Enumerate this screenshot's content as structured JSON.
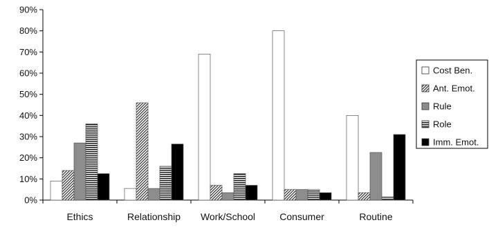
{
  "chart_data": {
    "type": "bar",
    "title": "",
    "xlabel": "",
    "ylabel": "",
    "categories": [
      "Ethics",
      "Relationship",
      "Work/School",
      "Consumer",
      "Routine"
    ],
    "y_tick_labels": [
      "0%",
      "10%",
      "20%",
      "30%",
      "40%",
      "50%",
      "60%",
      "70%",
      "80%",
      "90%"
    ],
    "ylim": [
      0,
      90
    ],
    "grid": false,
    "legend_position": "right",
    "series": [
      {
        "name": "Cost Ben.",
        "fill": "white",
        "values": [
          9,
          5.5,
          69,
          80,
          40
        ]
      },
      {
        "name": "Ant. Emot.",
        "fill": "diagonal-hatch",
        "values": [
          14,
          46,
          7,
          5,
          3.5
        ]
      },
      {
        "name": "Rule",
        "fill": "gray",
        "values": [
          27,
          5.5,
          3.5,
          5,
          22.5
        ]
      },
      {
        "name": "Role",
        "fill": "horizontal-lines",
        "values": [
          36,
          16,
          12.5,
          5,
          1.5
        ]
      },
      {
        "name": "Imm. Emot.",
        "fill": "black",
        "values": [
          12.5,
          26.5,
          7,
          3.5,
          31
        ]
      }
    ]
  }
}
